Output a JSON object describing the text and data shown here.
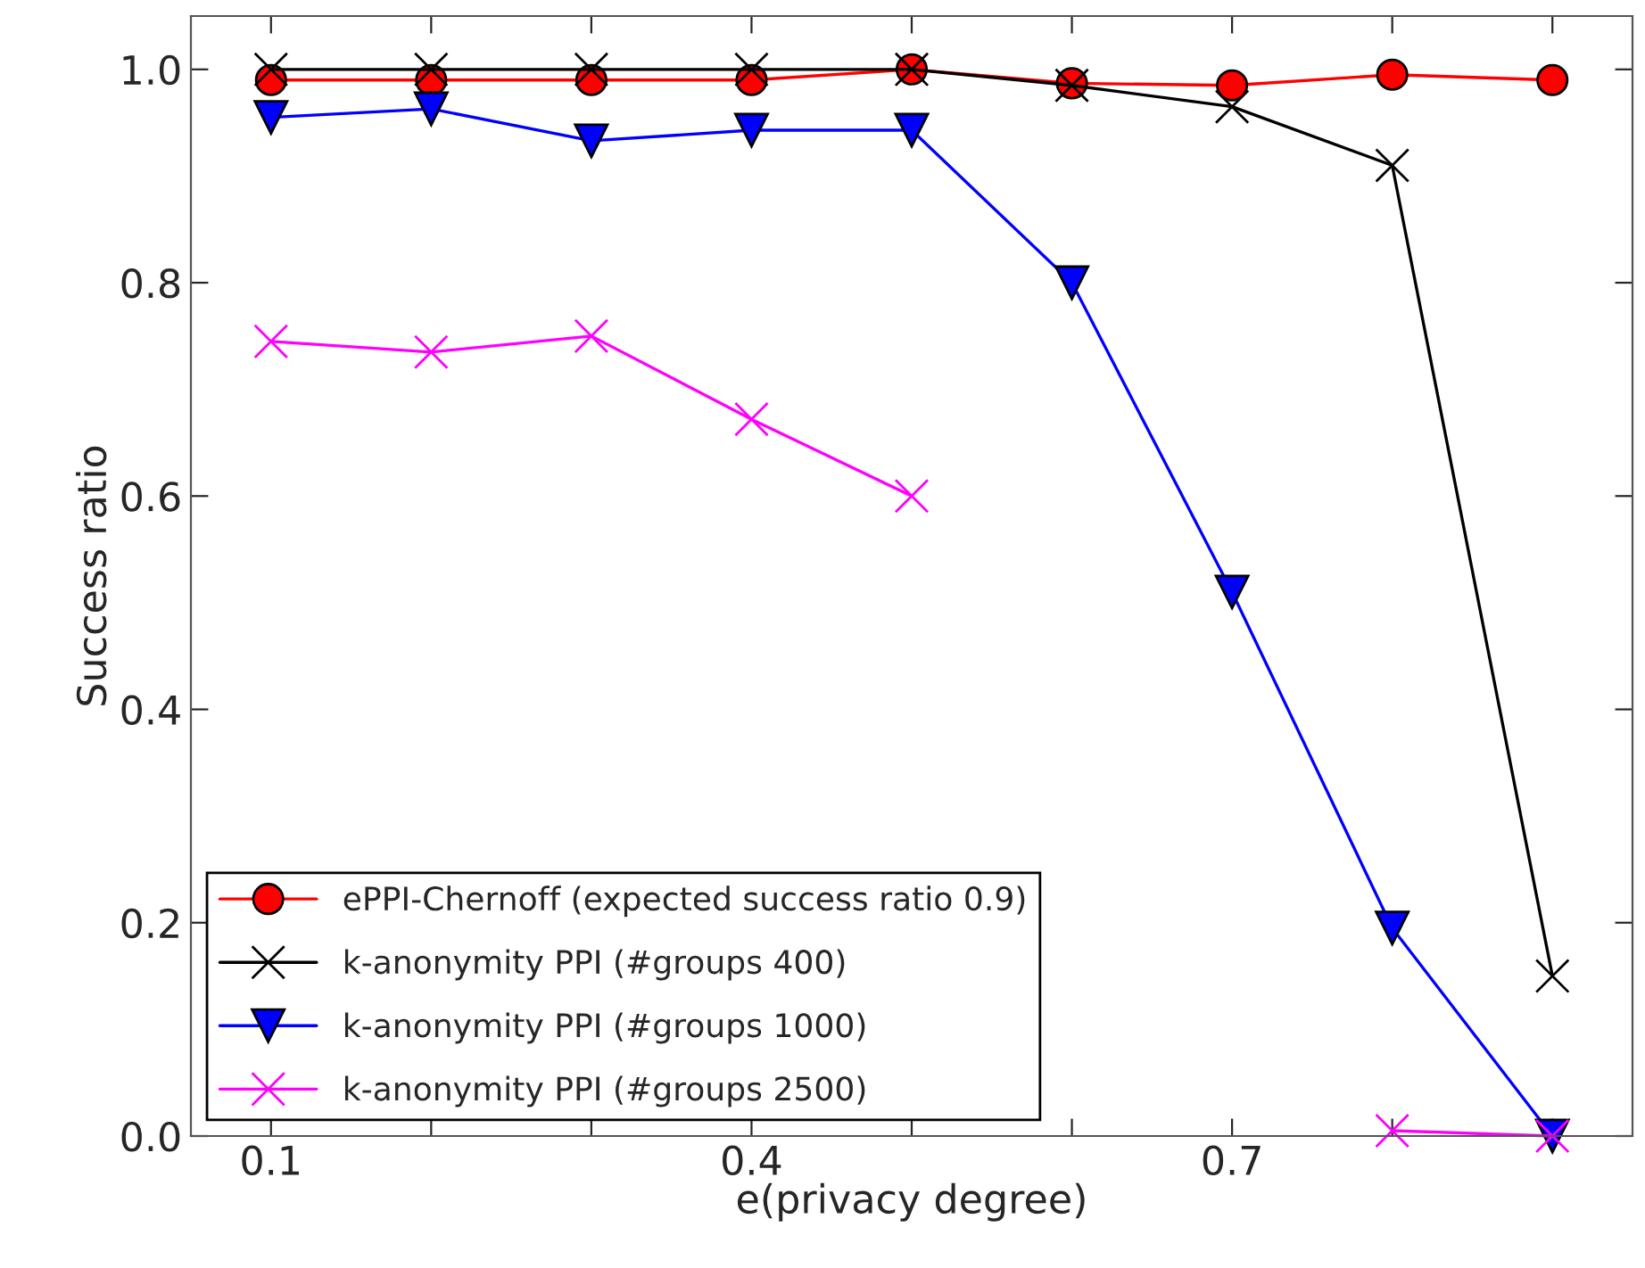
{
  "chart_data": {
    "type": "line",
    "xlabel": "e(privacy degree)",
    "ylabel": "Success ratio",
    "x": [
      0.1,
      0.2,
      0.3,
      0.4,
      0.5,
      0.6,
      0.7,
      0.8,
      0.9
    ],
    "series": [
      {
        "name": "ePPI-Chernoff (expected success ratio 0.9)",
        "color": "#ff0000",
        "marker": "circle",
        "values": [
          0.99,
          0.99,
          0.99,
          0.99,
          1.0,
          0.987,
          0.985,
          0.995,
          0.99
        ]
      },
      {
        "name": "k-anonymity PPI (#groups 400)",
        "color": "#000000",
        "marker": "cross",
        "values": [
          1.0,
          1.0,
          1.0,
          1.0,
          1.0,
          0.985,
          0.965,
          0.91,
          0.15
        ]
      },
      {
        "name": "k-anonymity PPI (#groups 1000)",
        "color": "#0000ff",
        "marker": "triangle",
        "values": [
          0.955,
          0.963,
          0.933,
          0.943,
          0.943,
          0.8,
          0.51,
          0.195,
          0.0
        ]
      },
      {
        "name": "k-anonymity PPI (#groups 2500)",
        "color": "#ff00ff",
        "marker": "cross",
        "values": [
          0.745,
          0.735,
          0.75,
          0.672,
          0.6,
          null,
          null,
          0.005,
          0.0
        ]
      }
    ],
    "xlim": [
      0.05,
      0.95
    ],
    "ylim": [
      0,
      1.05
    ],
    "xticks": [
      0.1,
      {
        "value": 0.2,
        "label": null
      },
      {
        "value": 0.3,
        "label": null
      },
      0.4,
      {
        "value": 0.5,
        "label": null
      },
      {
        "value": 0.6,
        "label": null
      },
      0.7,
      {
        "value": 0.8,
        "label": null
      },
      {
        "value": 0.9,
        "label": null
      }
    ],
    "yticks": [
      {
        "value": 0,
        "label": "0.0"
      },
      0.2,
      0.4,
      0.6,
      0.8,
      {
        "value": 1,
        "label": "1.0"
      }
    ],
    "grid": false,
    "legend": "bottom left",
    "line_style": "solid"
  }
}
